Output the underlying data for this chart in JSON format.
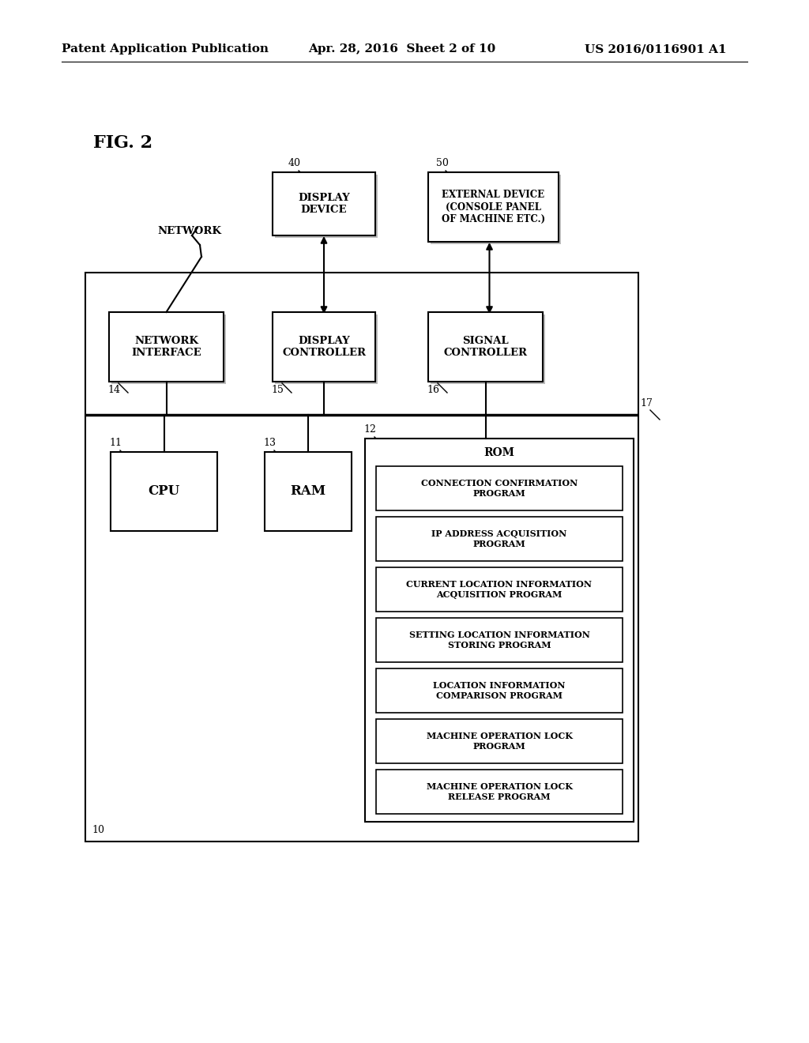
{
  "bg_color": "#ffffff",
  "header_left": "Patent Application Publication",
  "header_mid": "Apr. 28, 2016  Sheet 2 of 10",
  "header_right": "US 2016/0116901 A1",
  "fig_label": "FIG. 2"
}
